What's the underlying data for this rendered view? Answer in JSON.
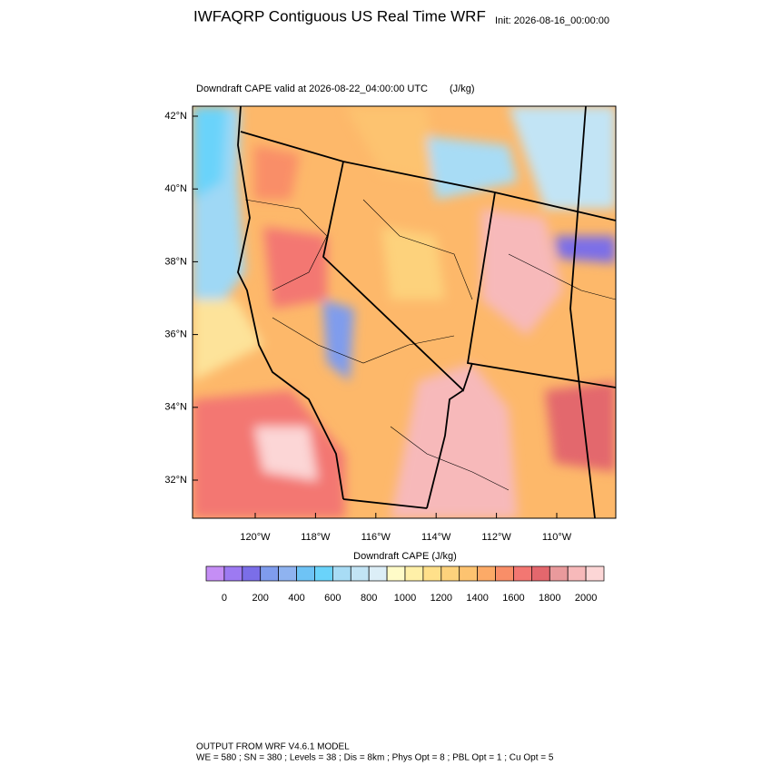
{
  "header": {
    "title": "IWFAQRP Contiguous US Real Time WRF",
    "init": "Init: 2026-08-16_00:00:00"
  },
  "map": {
    "subtitle": "Downdraft CAPE valid at 2026-08-22_04:00:00 UTC",
    "units": "(J/kg)",
    "lat_labels": [
      "42°N",
      "40°N",
      "38°N",
      "36°N",
      "34°N",
      "32°N"
    ],
    "lon_labels": [
      "120°W",
      "118°W",
      "116°W",
      "114°W",
      "112°W",
      "110°W"
    ]
  },
  "colorbar": {
    "title": "Downdraft CAPE  (J/kg)",
    "colors": [
      "#c58ef5",
      "#9d7af2",
      "#7b6ee8",
      "#7f9ced",
      "#8fb3f0",
      "#6ec3f5",
      "#6ad3fa",
      "#a8dcf5",
      "#c2e4f5",
      "#dceef7",
      "#fffbc8",
      "#fff0a8",
      "#ffe08a",
      "#fdd27c",
      "#fdc370",
      "#fcaa67",
      "#f98e68",
      "#f37772",
      "#e3676d",
      "#e99a9c",
      "#f7b9ba",
      "#fcd6d6"
    ],
    "ticks": [
      0,
      200,
      400,
      600,
      800,
      1000,
      1200,
      1400,
      1600,
      1800,
      2000
    ]
  },
  "footer": {
    "line1": "OUTPUT FROM WRF V4.6.1 MODEL",
    "line2": "WE = 580 ; SN = 380 ; Levels = 38 ; Dis = 8km ; Phys Opt = 8 ; PBL Opt = 1 ; Cu Opt = 5"
  }
}
